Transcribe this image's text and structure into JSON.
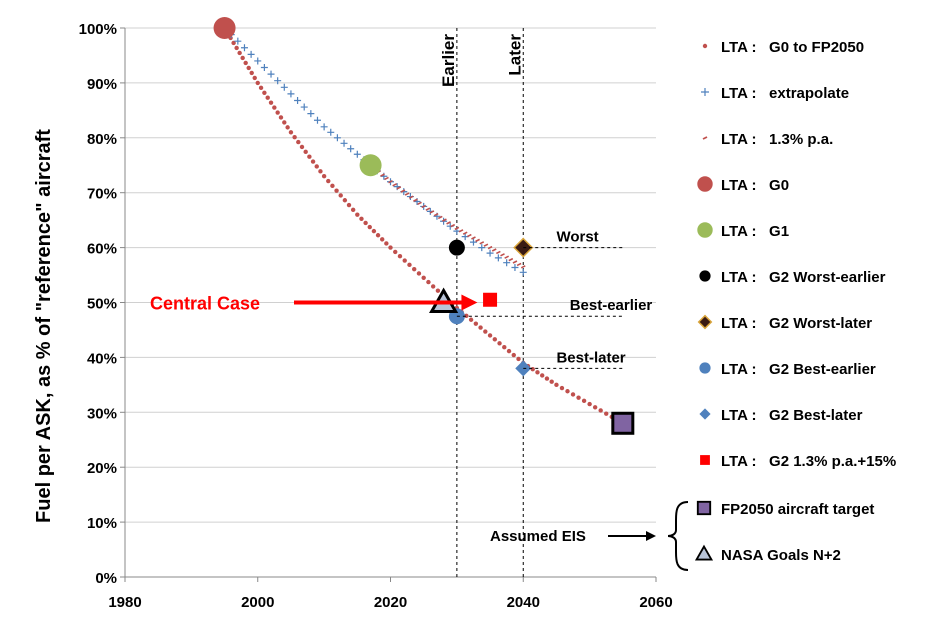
{
  "chart_data": {
    "type": "scatter",
    "title": "",
    "ylabel": "Fuel  per ASK, as % of \"reference\" aircraft",
    "xlabel": "",
    "xlim": [
      1980,
      2060
    ],
    "ylim": [
      0,
      1
    ],
    "x_ticks": [
      1980,
      2000,
      2020,
      2040,
      2060
    ],
    "y_ticks": [
      0,
      0.1,
      0.2,
      0.3,
      0.4,
      0.5,
      0.6,
      0.7,
      0.8,
      0.9,
      1.0
    ],
    "y_tick_labels": [
      "0%",
      "10%",
      "20%",
      "30%",
      "40%",
      "50%",
      "60%",
      "70%",
      "80%",
      "90%",
      "100%"
    ],
    "grid": "horizontal",
    "legend_position": "right",
    "colors": {
      "g0_curve": "#c0504d",
      "extrapolate": "#4f81bd",
      "rate13": "#c0504d",
      "g0": "#c0504d",
      "g1": "#9bbb59",
      "worst": "#000000",
      "best": "#4f81bd",
      "central": "#ff0000",
      "fp2050": "#8064a2"
    },
    "series": [
      {
        "name": "LTA :   G0 to FP2050",
        "key": "g0_curve",
        "style": "dotted-curve",
        "x": [
          1995,
          2000,
          2005,
          2010,
          2015,
          2020,
          2025,
          2030,
          2035,
          2040,
          2045,
          2050,
          2055
        ],
        "y": [
          1.0,
          0.9,
          0.81,
          0.73,
          0.66,
          0.6,
          0.545,
          0.49,
          0.44,
          0.39,
          0.35,
          0.315,
          0.28
        ]
      },
      {
        "name": "LTA :   extrapolate",
        "key": "extrapolate",
        "style": "plus-curve",
        "x": [
          1995,
          2000,
          2005,
          2010,
          2015,
          2020,
          2025,
          2030,
          2035,
          2040
        ],
        "y": [
          1.0,
          0.94,
          0.88,
          0.82,
          0.77,
          0.72,
          0.675,
          0.63,
          0.59,
          0.555
        ]
      },
      {
        "name": "LTA :   1.3% p.a.",
        "key": "rate13",
        "style": "dash-curve",
        "x": [
          2017,
          2020,
          2025,
          2030,
          2035,
          2040
        ],
        "y": [
          0.75,
          0.72,
          0.675,
          0.635,
          0.6,
          0.565
        ]
      },
      {
        "name": "LTA :   G0",
        "key": "g0",
        "marker": "circle-large",
        "x": [
          1995
        ],
        "y": [
          1.0
        ]
      },
      {
        "name": "LTA :   G1",
        "key": "g1",
        "marker": "circle-large",
        "x": [
          2017
        ],
        "y": [
          0.75
        ]
      },
      {
        "name": "LTA :   G2 Worst-earlier",
        "key": "worst",
        "marker": "circle",
        "x": [
          2030
        ],
        "y": [
          0.6
        ]
      },
      {
        "name": "LTA :   G2 Worst-later",
        "key": "worst",
        "marker": "diamond-outlined",
        "x": [
          2040
        ],
        "y": [
          0.6
        ]
      },
      {
        "name": "LTA :   G2 Best-earlier",
        "key": "best",
        "marker": "circle",
        "x": [
          2030
        ],
        "y": [
          0.475
        ]
      },
      {
        "name": "LTA :   G2 Best-later",
        "key": "best",
        "marker": "diamond",
        "x": [
          2040
        ],
        "y": [
          0.38
        ]
      },
      {
        "name": "LTA :   G2 1.3% p.a.+15%",
        "key": "central",
        "marker": "square",
        "x": [
          2035
        ],
        "y": [
          0.505
        ]
      }
    ],
    "extra_legend": [
      {
        "name": "FP2050 aircraft target",
        "key": "fp2050",
        "marker": "square-outlined",
        "x": 2055,
        "y": 0.28
      },
      {
        "name": "NASA Goals N+2",
        "key": "worst",
        "marker": "triangle-outlined",
        "x": 2028,
        "y": 0.5
      }
    ],
    "vertical_lines": [
      {
        "x": 2030,
        "label": "Earlier"
      },
      {
        "x": 2040,
        "label": "Later"
      }
    ],
    "annotations": [
      {
        "text": "Worst",
        "x": 2045,
        "y": 0.6,
        "leader_from": 2040
      },
      {
        "text": "Best-earlier",
        "x": 2047,
        "y": 0.475,
        "leader_from": 2030
      },
      {
        "text": "Best-later",
        "x": 2045,
        "y": 0.38,
        "leader_from": 2040
      },
      {
        "text": "Central Case",
        "color": "central",
        "x": 1984,
        "y": 0.5,
        "arrow_to_x": 2034,
        "arrow_to_y": 0.5
      },
      {
        "text": "Assumed EIS"
      }
    ]
  }
}
